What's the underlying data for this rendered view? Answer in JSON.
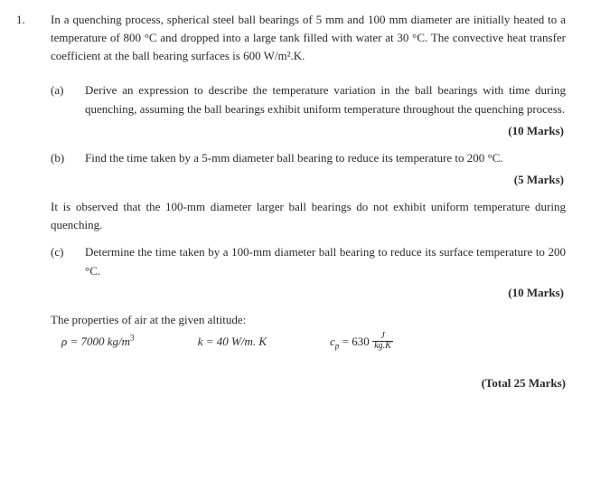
{
  "question": {
    "number": "1.",
    "intro": "In a quenching process, spherical steel ball bearings of 5 mm and 100 mm diameter are initially heated to a temperature of 800 °C and dropped into a large tank filled with water at 30 °C. The convective heat transfer coefficient at the ball bearing surfaces is 600 W/m².K.",
    "part_a": {
      "label": "(a)",
      "text": "Derive an expression to describe the temperature variation in the ball bearings with time during quenching, assuming the ball bearings exhibit uniform temperature throughout the quenching process.",
      "marks": "(10 Marks)"
    },
    "part_b": {
      "label": "(b)",
      "text": "Find the time taken by a 5-mm diameter ball bearing to reduce its temperature to 200 °C.",
      "marks": "(5 Marks)"
    },
    "observation": "It is observed that the 100-mm diameter larger ball bearings do not exhibit uniform temperature during quenching.",
    "part_c": {
      "label": "(c)",
      "text": "Determine the time taken by a 100-mm diameter ball bearing to reduce its surface temperature to 200 °C.",
      "marks": "(10 Marks)"
    },
    "properties": {
      "intro": "The properties of air at the given altitude:",
      "density_label": "ρ = 7000 kg/m",
      "density_exp": "3",
      "k_label": "k = 40 W/m. K",
      "cp_prefix": "c",
      "cp_sub": "p",
      "cp_eq": " = 630 ",
      "cp_frac_top": "J",
      "cp_frac_bot": "kg.K"
    },
    "total": "(Total 25 Marks)"
  }
}
